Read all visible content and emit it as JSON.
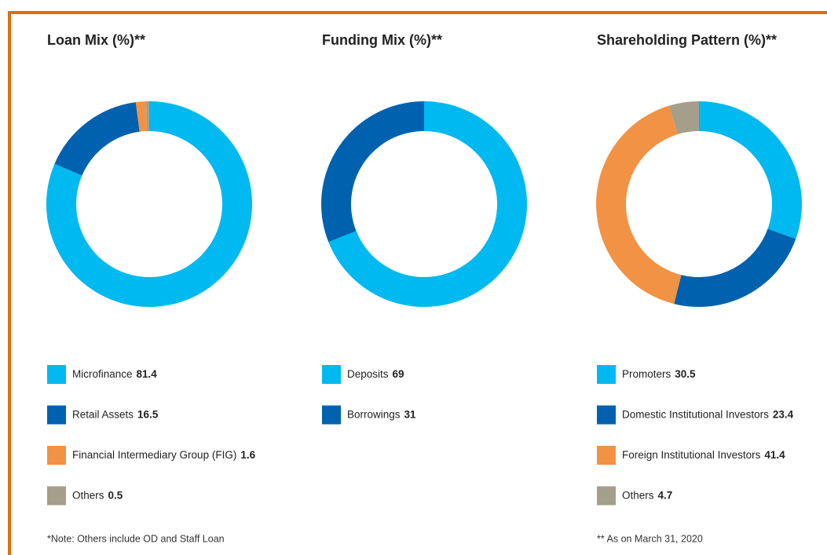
{
  "chart_data": [
    {
      "type": "pie",
      "title": "Loan Mix (%)**",
      "categories": [
        "Microfinance",
        "Retail Assets",
        "Financial Intermediary Group (FIG)",
        "Others"
      ],
      "values": [
        81.4,
        16.5,
        1.6,
        0.5
      ],
      "colors": [
        "#00b9f0",
        "#0062ae",
        "#f29244",
        "#a59e8a"
      ],
      "note": "*Note: Others include OD and Staff Loan"
    },
    {
      "type": "pie",
      "title": "Funding Mix (%)**",
      "categories": [
        "Deposits",
        "Borrowings"
      ],
      "values": [
        69,
        31
      ],
      "colors": [
        "#00b9f0",
        "#0062ae"
      ]
    },
    {
      "type": "pie",
      "title": "Shareholding Pattern (%)**",
      "categories": [
        "Promoters",
        "Domestic Institutional Investors",
        "Foreign Institutional Investors",
        "Others"
      ],
      "values": [
        30.5,
        23.4,
        41.4,
        4.7
      ],
      "colors": [
        "#00b9f0",
        "#0062ae",
        "#f29244",
        "#a59e8a"
      ],
      "note": "** As on March 31, 2020"
    }
  ]
}
